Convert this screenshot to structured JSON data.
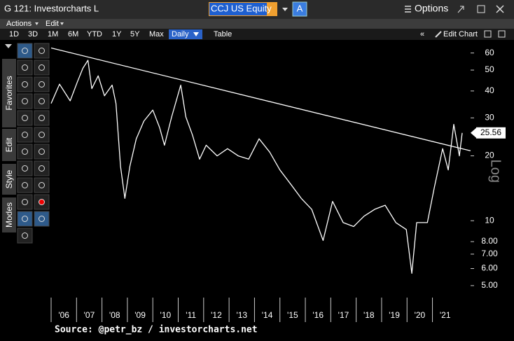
{
  "window": {
    "title": "G 121: Investorcharts L",
    "ticker": "CCJ US Equity",
    "ticker_button": "A",
    "options": "Options"
  },
  "menu": [
    "Actions",
    "Edit"
  ],
  "toolbar": {
    "ranges": [
      "1D",
      "3D",
      "1M",
      "6M",
      "YTD",
      "1Y",
      "5Y",
      "Max"
    ],
    "frequency": "Daily",
    "view": "Table",
    "edit_chart": "Edit Chart"
  },
  "side_tabs": [
    "Favorites",
    "Edit",
    "Style",
    "Modes"
  ],
  "chart_data": {
    "type": "line",
    "log_scale": true,
    "y_axis_label": "Log",
    "source": "Source: @petr_bz / investorcharts.net",
    "xlim": [
      2006,
      2022.5
    ],
    "xticks": [
      {
        "value": 2006,
        "label": "'06"
      },
      {
        "value": 2007,
        "label": "'07"
      },
      {
        "value": 2008,
        "label": "'08"
      },
      {
        "value": 2009,
        "label": "'09"
      },
      {
        "value": 2010,
        "label": "'10"
      },
      {
        "value": 2011,
        "label": "'11"
      },
      {
        "value": 2012,
        "label": "'12"
      },
      {
        "value": 2013,
        "label": "'13"
      },
      {
        "value": 2014,
        "label": "'14"
      },
      {
        "value": 2015,
        "label": "'15"
      },
      {
        "value": 2016,
        "label": "'16"
      },
      {
        "value": 2017,
        "label": "'17"
      },
      {
        "value": 2018,
        "label": "'18"
      },
      {
        "value": 2019,
        "label": "'19"
      },
      {
        "value": 2020,
        "label": "'20"
      },
      {
        "value": 2021,
        "label": "'21"
      }
    ],
    "ylim": [
      4.4,
      69
    ],
    "yticks": [
      {
        "value": 5,
        "label": "5.00"
      },
      {
        "value": 6,
        "label": "6.00"
      },
      {
        "value": 7,
        "label": "7.00"
      },
      {
        "value": 8,
        "label": "8.00"
      },
      10,
      20,
      30,
      40,
      50,
      60
    ],
    "series": [
      {
        "color": "#ffffff",
        "x": [
          2006.0,
          2006.33,
          2006.75,
          2007.03,
          2007.25,
          2007.45,
          2007.6,
          2007.85,
          2008.1,
          2008.4,
          2008.55,
          2008.73,
          2008.9,
          2009.1,
          2009.35,
          2009.65,
          2010.0,
          2010.27,
          2010.46,
          2010.74,
          2011.1,
          2011.3,
          2011.56,
          2011.84,
          2012.1,
          2012.53,
          2012.94,
          2013.36,
          2013.77,
          2014.18,
          2014.6,
          2015.0,
          2015.42,
          2015.84,
          2016.25,
          2016.7,
          2017.07,
          2017.49,
          2017.9,
          2018.31,
          2018.73,
          2019.14,
          2019.56,
          2019.97,
          2020.19,
          2020.38,
          2020.8,
          2021.07,
          2021.4,
          2021.62,
          2021.84,
          2022.06,
          2022.17
        ],
        "values": [
          35,
          43,
          36,
          44,
          51,
          55.5,
          41,
          47,
          38,
          42.6,
          35,
          17.9,
          12.7,
          17.9,
          24,
          29,
          32.6,
          27,
          22.4,
          30.3,
          42.6,
          30.3,
          25,
          19.3,
          22.4,
          20,
          21.6,
          20,
          19.3,
          24,
          20.8,
          17.2,
          14.8,
          12.7,
          11.3,
          8.1,
          12.3,
          9.8,
          9.4,
          10.5,
          11.3,
          11.8,
          9.8,
          9.1,
          5.7,
          9.8,
          9.8,
          14.2,
          21.6,
          17.2,
          28,
          20,
          25.56
        ]
      }
    ],
    "trendline": {
      "color": "#ffffff",
      "x": [
        2006,
        2022.5
      ],
      "values": [
        63.3,
        21.1
      ]
    }
  }
}
